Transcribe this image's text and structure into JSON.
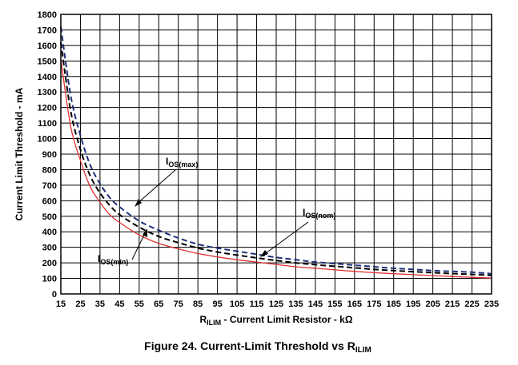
{
  "chart_data": {
    "type": "line",
    "caption": "Figure 24.  Current-Limit Threshold vs R",
    "caption_sub": "ILIM",
    "xlabel_main": "R",
    "xlabel_sub": "ILIM",
    "xlabel_rest": " - Current Limit Resistor - kΩ",
    "ylabel": "Current Limit Threshold - mA",
    "xlim": [
      15,
      235
    ],
    "ylim": [
      0,
      1800
    ],
    "x_ticks": [
      15,
      25,
      35,
      45,
      55,
      65,
      75,
      85,
      95,
      105,
      115,
      125,
      135,
      145,
      155,
      165,
      175,
      185,
      195,
      205,
      215,
      225,
      235
    ],
    "y_ticks": [
      0,
      100,
      200,
      300,
      400,
      500,
      600,
      700,
      800,
      900,
      1000,
      1100,
      1200,
      1300,
      1400,
      1500,
      1600,
      1700,
      1800
    ],
    "grid": true,
    "annotations": [
      {
        "main": "I",
        "sub": "OS(max)"
      },
      {
        "main": "I",
        "sub": "OS(nom)"
      },
      {
        "main": "I",
        "sub": "OS(min)"
      }
    ],
    "series": [
      {
        "name": "IOS(max)",
        "color": "#1f2f7a",
        "dash": "7,4",
        "x": [
          15,
          20,
          25,
          30,
          35,
          40,
          45,
          55,
          65,
          75,
          85,
          95,
          105,
          115,
          125,
          135,
          145,
          155,
          165,
          175,
          185,
          195,
          205,
          215,
          225,
          235
        ],
        "y": [
          1720,
          1280,
          1020,
          830,
          710,
          620,
          560,
          470,
          410,
          360,
          320,
          295,
          275,
          255,
          235,
          220,
          205,
          195,
          185,
          175,
          165,
          158,
          150,
          145,
          140,
          130
        ]
      },
      {
        "name": "IOS(nom)",
        "color": "#000000",
        "dash": "7,4",
        "x": [
          15,
          20,
          25,
          30,
          35,
          40,
          45,
          55,
          65,
          75,
          85,
          95,
          105,
          115,
          125,
          135,
          145,
          155,
          165,
          175,
          185,
          195,
          205,
          215,
          225,
          235
        ],
        "y": [
          1620,
          1180,
          930,
          760,
          650,
          570,
          510,
          430,
          370,
          330,
          295,
          270,
          250,
          232,
          215,
          200,
          188,
          178,
          168,
          158,
          150,
          143,
          137,
          131,
          126,
          120
        ]
      },
      {
        "name": "IOS(min)",
        "color": "#e03030",
        "dash": "",
        "x": [
          15,
          20,
          25,
          30,
          35,
          40,
          45,
          55,
          65,
          75,
          85,
          95,
          105,
          115,
          125,
          135,
          145,
          155,
          165,
          175,
          185,
          195,
          205,
          215,
          225,
          235
        ],
        "y": [
          1510,
          1080,
          860,
          690,
          590,
          510,
          460,
          380,
          325,
          290,
          260,
          238,
          220,
          205,
          190,
          175,
          165,
          155,
          145,
          137,
          130,
          124,
          118,
          112,
          107,
          102
        ]
      }
    ]
  }
}
